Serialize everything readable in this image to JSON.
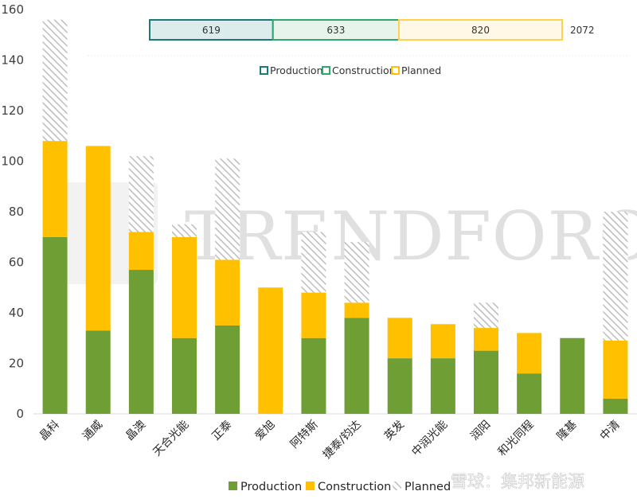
{
  "chart_data": {
    "type": "bar",
    "stacked": true,
    "categories": [
      "晶科",
      "通威",
      "晶澳",
      "天合光能",
      "正泰",
      "爱旭",
      "阿特斯",
      "捷泰/钧达",
      "英发",
      "中润光能",
      "润阳",
      "和光同程",
      "隆基",
      "中清"
    ],
    "series": [
      {
        "name": "Production",
        "color": "#6e9e34",
        "values": [
          70,
          33,
          57,
          30,
          35,
          0,
          30,
          38,
          22,
          22,
          25,
          16,
          30,
          6
        ]
      },
      {
        "name": "Construction",
        "color": "#ffc000",
        "values": [
          38,
          73,
          15,
          40,
          26,
          50,
          18,
          6,
          16,
          13.5,
          9,
          16,
          0,
          23
        ]
      },
      {
        "name": "Planned",
        "color": "#c9c9c9",
        "pattern": "hatched",
        "values": [
          48,
          0,
          30,
          5,
          40,
          0,
          24,
          24,
          0,
          0,
          10,
          0,
          0,
          51
        ]
      }
    ],
    "ylim": [
      0,
      160
    ],
    "yticks": [
      0,
      20,
      40,
      60,
      80,
      100,
      120,
      140,
      160
    ],
    "grid": false,
    "legend_position": "bottom",
    "legend_items": [
      {
        "label": "Production",
        "color": "#6e9e34"
      },
      {
        "label": "Construction",
        "color": "#ffc000"
      },
      {
        "label": "Planned",
        "color": "#c9c9c9"
      }
    ],
    "summary_bar": {
      "segments": [
        {
          "label": "Production",
          "value": 619,
          "text": "619",
          "fill": "#dcecec",
          "stroke": "#1a7a7a"
        },
        {
          "label": "Construction",
          "value": 633,
          "text": "633",
          "fill": "#e6f4ec",
          "stroke": "#2ea86c"
        },
        {
          "label": "Planned",
          "value": 820,
          "text": "820",
          "fill": "#fff8e6",
          "stroke": "#ffd24d"
        }
      ],
      "total": "2072"
    },
    "inner_legend": [
      {
        "label": "Production",
        "stroke": "#1a7a7a"
      },
      {
        "label": "Construction",
        "stroke": "#2ea86c"
      },
      {
        "label": "Planned",
        "stroke": "#ffc000"
      }
    ]
  },
  "watermark": {
    "logo_text": "TRENDFORCE",
    "credit": "雪球：集邦新能源"
  }
}
